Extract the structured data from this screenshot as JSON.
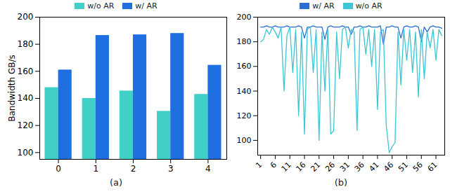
{
  "chart_data": [
    {
      "type": "bar",
      "caption": "(a)",
      "y_label": "Bandwidth GB/s",
      "categories": [
        "0",
        "1",
        "2",
        "3",
        "4"
      ],
      "series": [
        {
          "name": "w/o AR",
          "color": "#40d0c8",
          "values": [
            148,
            140,
            145.5,
            130.5,
            143
          ]
        },
        {
          "name": "w/ AR",
          "color": "#1f6fe0",
          "values": [
            161,
            186.5,
            187,
            188,
            164.5
          ]
        }
      ],
      "ylim": [
        95,
        200
      ],
      "yticks": [
        100,
        120,
        140,
        160,
        180,
        200
      ],
      "grid": false,
      "legend": "upper right"
    },
    {
      "type": "line",
      "caption": "(b)",
      "x": [
        1,
        2,
        3,
        4,
        5,
        6,
        7,
        8,
        9,
        10,
        11,
        12,
        13,
        14,
        15,
        16,
        17,
        18,
        19,
        20,
        21,
        22,
        23,
        24,
        25,
        26,
        27,
        28,
        29,
        30,
        31,
        32,
        33,
        34,
        35,
        36,
        37,
        38,
        39,
        40,
        41,
        42,
        43,
        44,
        45,
        46,
        47,
        48,
        49,
        50,
        51,
        52,
        53,
        54,
        55,
        56,
        57,
        58,
        59,
        60,
        61,
        62,
        63
      ],
      "series": [
        {
          "name": "w/ AR",
          "color": "#2a6fd4",
          "values": [
            192,
            192,
            193,
            192,
            192,
            193,
            192,
            192,
            192,
            193,
            192,
            192,
            192,
            193,
            192,
            183,
            192,
            192,
            193,
            192,
            192,
            192,
            182,
            192,
            193,
            192,
            192,
            192,
            193,
            192,
            192,
            186,
            192,
            192,
            193,
            192,
            192,
            193,
            192,
            192,
            192,
            193,
            178,
            192,
            192,
            193,
            192,
            192,
            183,
            192,
            193,
            192,
            192,
            193,
            192,
            180,
            192,
            188,
            192,
            193,
            192,
            192,
            191
          ]
        },
        {
          "name": "w/o AR",
          "color": "#3cc6d6",
          "values": [
            180,
            182,
            190,
            186,
            192,
            188,
            183,
            192,
            140,
            185,
            192,
            155,
            190,
            120,
            188,
            105,
            190,
            192,
            155,
            190,
            100,
            188,
            140,
            190,
            105,
            108,
            188,
            150,
            190,
            192,
            175,
            190,
            188,
            108,
            190,
            192,
            170,
            190,
            160,
            190,
            125,
            188,
            190,
            112,
            90,
            95,
            98,
            188,
            145,
            190,
            165,
            190,
            155,
            188,
            135,
            190,
            150,
            188,
            175,
            190,
            165,
            190,
            185
          ]
        }
      ],
      "xlim": [
        0,
        64
      ],
      "xticks": [
        1,
        6,
        11,
        16,
        21,
        26,
        31,
        36,
        41,
        46,
        51,
        56,
        61
      ],
      "ylim": [
        88,
        200
      ],
      "yticks": [
        100,
        120,
        140,
        160,
        180,
        200
      ],
      "grid": false,
      "legend": "lower left"
    }
  ]
}
